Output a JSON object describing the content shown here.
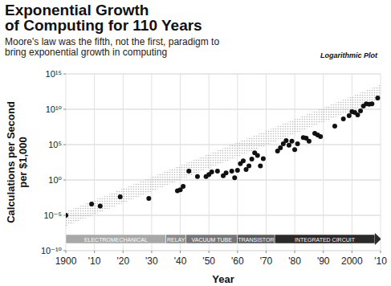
{
  "chart_data": {
    "type": "scatter",
    "title": [
      "Exponential Growth",
      "of Computing for 110 Years"
    ],
    "subtitle": [
      "Moore's law was the fifth, not the first, paradigm to",
      "bring exponential growth in computing"
    ],
    "annotation": "Logarithmic Plot",
    "x_label": "Year",
    "y_label": [
      "Calculations per Second",
      "per $1,000"
    ],
    "log": "y",
    "grid": true,
    "color": "#111111",
    "marker": "circle",
    "xlim": [
      1900,
      2010
    ],
    "ylim": [
      1e-10,
      1000000000000000.0
    ],
    "xticks": [
      1900,
      {
        "value": 1910,
        "label": "'10"
      },
      {
        "value": 1920,
        "label": "'20"
      },
      {
        "value": 1930,
        "label": "'30"
      },
      {
        "value": 1940,
        "label": "'40"
      },
      {
        "value": 1950,
        "label": "'50"
      },
      {
        "value": 1960,
        "label": "'60"
      },
      {
        "value": 1970,
        "label": "'70"
      },
      {
        "value": 1980,
        "label": "'80"
      },
      {
        "value": 1990,
        "label": "'90"
      },
      2000,
      {
        "value": 2010,
        "label": "'10"
      }
    ],
    "yticks": [
      {
        "value": 1e-10,
        "label": "10⁻¹⁰"
      },
      {
        "value": 1e-05,
        "label": "10⁻⁵"
      },
      {
        "value": 1,
        "label": "10⁰"
      },
      {
        "value": 100000.0,
        "label": "10⁵"
      },
      {
        "value": 10000000000.0,
        "label": "10¹⁰"
      },
      {
        "value": 1000000000000000.0,
        "label": "10¹⁵"
      }
    ],
    "x": [
      1900,
      1909,
      1912,
      1919,
      1929,
      1939,
      1940,
      1941,
      1943,
      1946,
      1949,
      1950,
      1951,
      1953,
      1955,
      1956,
      1958,
      1959,
      1960,
      1961,
      1962,
      1963,
      1964,
      1965,
      1966,
      1967,
      1968,
      1969,
      1974,
      1975,
      1976,
      1977,
      1978,
      1979,
      1980,
      1981,
      1983,
      1984,
      1985,
      1987,
      1988,
      1989,
      1994,
      1997,
      1999,
      2000,
      2001,
      2002,
      2003,
      2004,
      2005,
      2006,
      2007,
      2009
    ],
    "values": [
      1e-05,
      0.0004,
      0.0002,
      0.004,
      0.0025,
      0.03,
      0.04,
      0.12,
      18,
      3,
      3,
      6,
      14,
      18,
      4,
      10,
      18,
      2,
      23,
      200,
      500,
      30,
      100,
      900,
      7000,
      3000,
      100,
      1000,
      12000.0,
      35000.0,
      130000.0,
      370000.0,
      80000.0,
      300000.0,
      20000.0,
      130000.0,
      1000000.0,
      800000.0,
      300000.0,
      4000000.0,
      2300000.0,
      1400000.0,
      40000000.0,
      440000000.0,
      1200000000.0,
      4500000000.0,
      3500000000.0,
      1600000000.0,
      6000000000.0,
      28000000000.0,
      60000000000.0,
      50000000000.0,
      60000000000.0,
      400000000000.0
    ],
    "trend": {
      "x": [
        1900,
        2010
      ],
      "values": [
        3e-06,
        3000000000000.0
      ]
    },
    "paradigms": [
      {
        "label": "ELECTROMECHANICAL",
        "start": 1900,
        "end": 1935
      },
      {
        "label": "RELAY",
        "start": 1935,
        "end": 1942
      },
      {
        "label": "VACUUM TUBE",
        "start": 1942,
        "end": 1960
      },
      {
        "label": "TRANSISTOR",
        "start": 1960,
        "end": 1973
      },
      {
        "label": "INTEGRATED CIRCUIT",
        "start": 1973,
        "end": 2008
      }
    ]
  }
}
